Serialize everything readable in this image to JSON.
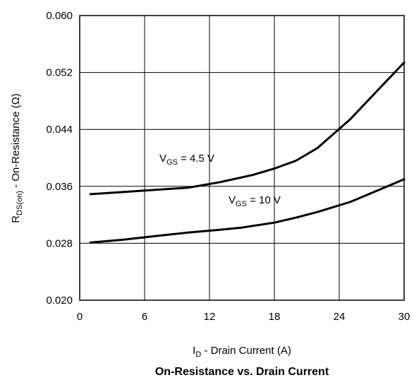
{
  "chart_data": {
    "type": "line",
    "title": "On-Resistance vs. Drain Current",
    "xlabel": {
      "main": "I",
      "sub": "D",
      "rest": " - Drain Current (A)"
    },
    "ylabel": {
      "main": "R",
      "sub": "DS(on)",
      "rest": " - On-Resistance (Ω)"
    },
    "xlim": [
      0,
      30
    ],
    "ylim": [
      0.02,
      0.06
    ],
    "xticks": [
      0,
      6,
      12,
      18,
      24,
      30
    ],
    "xtick_labels": [
      "0",
      "6",
      "12",
      "18",
      "24",
      "30"
    ],
    "yticks": [
      0.02,
      0.028,
      0.036,
      0.044,
      0.052,
      0.06
    ],
    "ytick_labels": [
      "0.020",
      "0.028",
      "0.036",
      "0.044",
      "0.052",
      "0.060"
    ],
    "grid": true,
    "series": [
      {
        "name": "VGS = 4.5 V",
        "label": {
          "main": "V",
          "sub": "GS",
          "rest": " = 4.5 V"
        },
        "x": [
          1,
          4,
          7,
          10,
          13,
          16,
          18,
          20,
          22,
          25,
          28,
          30
        ],
        "y": [
          0.0349,
          0.0352,
          0.0355,
          0.0358,
          0.0366,
          0.0376,
          0.0385,
          0.0396,
          0.0414,
          0.0454,
          0.0502,
          0.0534
        ]
      },
      {
        "name": "VGS = 10 V",
        "label": {
          "main": "V",
          "sub": "GS",
          "rest": " = 10 V"
        },
        "x": [
          1,
          4,
          7,
          10,
          13,
          15,
          18,
          20,
          22,
          25,
          28,
          30
        ],
        "y": [
          0.0281,
          0.0285,
          0.029,
          0.0295,
          0.0299,
          0.0302,
          0.0309,
          0.0316,
          0.0324,
          0.0338,
          0.0357,
          0.037
        ]
      }
    ]
  }
}
